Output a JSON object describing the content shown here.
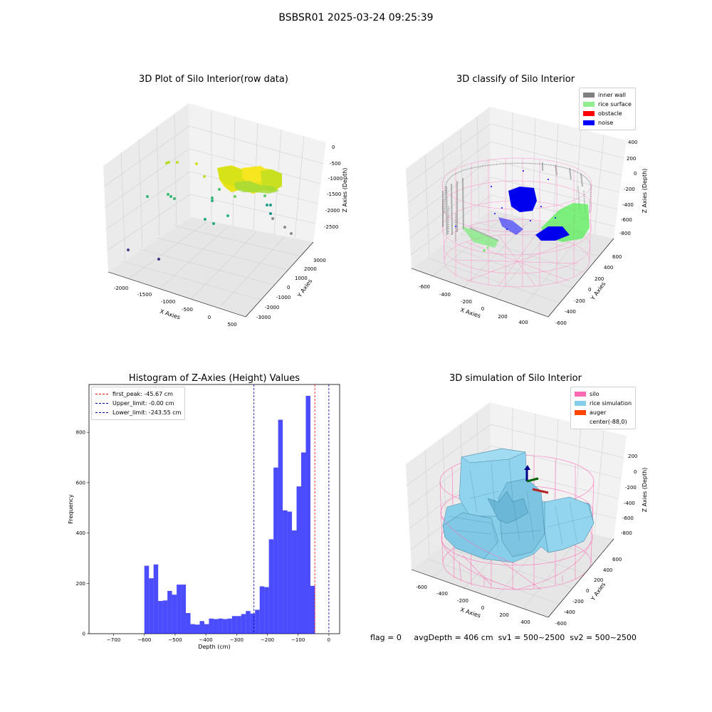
{
  "suptitle": "BSBSR01 2025-03-24 09:25:39",
  "footer": {
    "flag": "flag = 0",
    "avg_depth": "avgDepth = 406 cm",
    "sv1": "sv1 = 500~2500",
    "sv2": "sv2 = 500~2500"
  },
  "chart_data": [
    {
      "type": "scatter3d",
      "title": "3D Plot of Silo Interior(row data)",
      "xlabel": "X Axies",
      "ylabel": "Y Axies",
      "zlabel": "Z Axies (Depth)",
      "x_ticks": [
        "-2000",
        "-1500",
        "-1000",
        "-500",
        "0",
        "500"
      ],
      "y_ticks": [
        "-3000",
        "-2000",
        "-1000",
        "0",
        "1000",
        "2000",
        "3000"
      ],
      "z_ticks": [
        "0",
        "-500",
        "-1000",
        "-1500",
        "-2000",
        "-2500"
      ],
      "colormap": "viridis",
      "grid": true
    },
    {
      "type": "scatter3d",
      "title": "3D classify of Silo Interior",
      "xlabel": "X Axies",
      "ylabel": "Y Axies",
      "zlabel": "Z Axies (Depth)",
      "x_ticks": [
        "-600",
        "-400",
        "-200",
        "0",
        "200",
        "400"
      ],
      "y_ticks": [
        "-600",
        "-400",
        "-200",
        "0",
        "200",
        "400",
        "600"
      ],
      "z_ticks": [
        "400",
        "200",
        "0",
        "-200",
        "-400",
        "-600",
        "-800"
      ],
      "legend": [
        {
          "label": "inner wall",
          "color": "#808080"
        },
        {
          "label": "rice surface",
          "color": "#90ee90"
        },
        {
          "label": "obstacle",
          "color": "#ff0000"
        },
        {
          "label": "noise",
          "color": "#0000ff"
        }
      ],
      "legend_position": "top-right",
      "grid": true
    },
    {
      "type": "bar",
      "title": "Histogram of Z-Axies (Height) Values",
      "xlabel": "Depth (cm)",
      "ylabel": "Frequency",
      "xlim": [
        -780,
        35
      ],
      "ylim": [
        0,
        990
      ],
      "x_ticks": [
        -700,
        -600,
        -500,
        -400,
        -300,
        -200,
        -100,
        0
      ],
      "y_ticks": [
        0,
        200,
        400,
        600,
        800
      ],
      "bin_start": -600,
      "bin_width": 15,
      "values": [
        270,
        220,
        275,
        130,
        132,
        170,
        155,
        195,
        195,
        82,
        38,
        36,
        50,
        38,
        60,
        58,
        60,
        58,
        60,
        70,
        70,
        78,
        90,
        80,
        95,
        188,
        185,
        375,
        660,
        850,
        490,
        485,
        410,
        585,
        720,
        945,
        190
      ],
      "bar_color": "#0000ff",
      "bar_alpha": 0.7,
      "lines": [
        {
          "label": "first_peak: -45.67 cm",
          "x": -45.67,
          "color": "#ff0000"
        },
        {
          "label": "Upper_limit: -0.00 cm",
          "x": -0.0,
          "color": "#0000aa"
        },
        {
          "label": "Lower_limit: -243.55 cm",
          "x": -243.55,
          "color": "#0000aa"
        }
      ],
      "legend_position": "top-left"
    },
    {
      "type": "surface3d",
      "title": "3D simulation of Silo Interior",
      "xlabel": "X Axies",
      "ylabel": "Y Axies",
      "zlabel": "Z Axies (Depth)",
      "x_ticks": [
        "-600",
        "-400",
        "-200",
        "0",
        "200",
        "400"
      ],
      "y_ticks": [
        "-600",
        "-400",
        "-200",
        "0",
        "200",
        "400",
        "600"
      ],
      "z_ticks": [
        "200",
        "0",
        "-200",
        "-400",
        "-600",
        "-800"
      ],
      "legend": [
        {
          "label": "silo",
          "color": "#ff69b4"
        },
        {
          "label": "rice simulation",
          "color": "#87ceeb"
        },
        {
          "label": "auger",
          "color": "#ff4500"
        },
        {
          "label": "center(-88,0)",
          "color": "#ffffff"
        }
      ],
      "legend_position": "top-right",
      "grid": true
    }
  ]
}
